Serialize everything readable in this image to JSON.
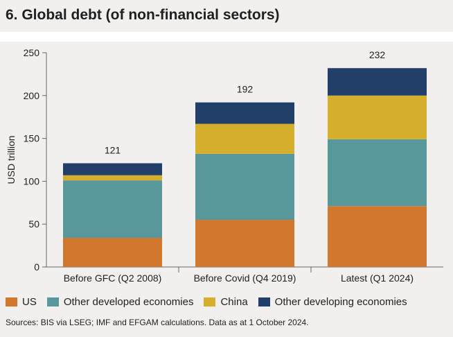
{
  "title": "6. Global debt (of non-financial sectors)",
  "source": "Sources: BIS via LSEG; IMF and EFGAM calculations. Data as at 1 October 2024.",
  "colors": {
    "US": "#d2772e",
    "Other developed economies": "#58979a",
    "China": "#d5af2b",
    "Other developing economies": "#223f6a",
    "axis": "#666666",
    "background": "#f1f0ee"
  },
  "chart_data": {
    "type": "bar",
    "stacked": true,
    "title": "6. Global debt (of non-financial sectors)",
    "xlabel": "",
    "ylabel": "USD trillion",
    "ylim": [
      0,
      250
    ],
    "yticks": [
      0,
      50,
      100,
      150,
      200,
      250
    ],
    "grid": false,
    "legend_position": "bottom",
    "categories": [
      "Before GFC (Q2 2008)",
      "Before Covid (Q4 2019)",
      "Latest (Q1 2024)"
    ],
    "totals": [
      121,
      192,
      232
    ],
    "total_labels": [
      "121",
      "192",
      "232"
    ],
    "series": [
      {
        "name": "US",
        "values": [
          34,
          55,
          71
        ]
      },
      {
        "name": "Other developed economies",
        "values": [
          67,
          77,
          78
        ]
      },
      {
        "name": "China",
        "values": [
          6,
          35,
          51
        ]
      },
      {
        "name": "Other developing economies",
        "values": [
          14,
          25,
          32
        ]
      }
    ]
  }
}
